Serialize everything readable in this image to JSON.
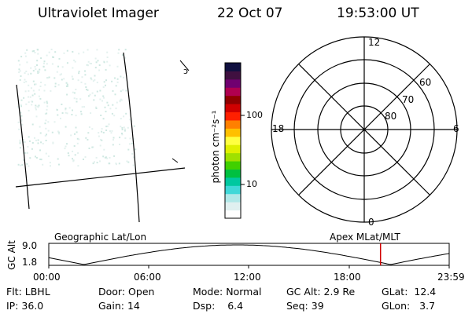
{
  "header": {
    "instrument": "Ultraviolet Imager",
    "date": "22 Oct 07",
    "time": "19:53:00 UT"
  },
  "colorbar": {
    "unit_label": "photon cm⁻²s⁻¹",
    "ticks": [
      "100",
      "10"
    ],
    "colors": [
      "#ffffff",
      "#e0f0f0",
      "#b0e8e8",
      "#40d8d8",
      "#00c8a0",
      "#00c040",
      "#40d000",
      "#a0e000",
      "#e0f000",
      "#ffff40",
      "#ffc000",
      "#ff8000",
      "#ff2000",
      "#d00000",
      "#900000",
      "#b00050",
      "#700070",
      "#401040",
      "#101040"
    ]
  },
  "polar": {
    "lat_labels": [
      "60",
      "70",
      "80"
    ],
    "mlt_labels": {
      "top": "12",
      "left": "18",
      "right": "6",
      "bottom": "0"
    }
  },
  "timeline": {
    "y_axis_label": "GC Alt",
    "y_ticks": [
      "9.0",
      "1.8"
    ],
    "left_title": "Geographic Lat/Lon",
    "right_title": "Apex MLat/MLT",
    "x_ticks": [
      "00:00",
      "06:00",
      "12:00",
      "18:00",
      "23:59"
    ],
    "marker_time_hours": 19.883,
    "marker_color": "#d00000"
  },
  "status": {
    "flt": {
      "label": "Flt:",
      "value": "LBHL"
    },
    "ip": {
      "label": "IP:",
      "value": "36.0"
    },
    "door": {
      "label": "Door:",
      "value": "Open"
    },
    "gain": {
      "label": "Gain:",
      "value": "14"
    },
    "mode": {
      "label": "Mode:",
      "value": "Normal"
    },
    "dsp": {
      "label": "Dsp:",
      "value": "6.4"
    },
    "gcalt": {
      "label": "GC Alt:",
      "value": "2.9 Re"
    },
    "seq": {
      "label": "Seq:",
      "value": "39"
    },
    "glat": {
      "label": "GLat:",
      "value": "12.4"
    },
    "glon": {
      "label": "GLon:",
      "value": "3.7"
    }
  }
}
